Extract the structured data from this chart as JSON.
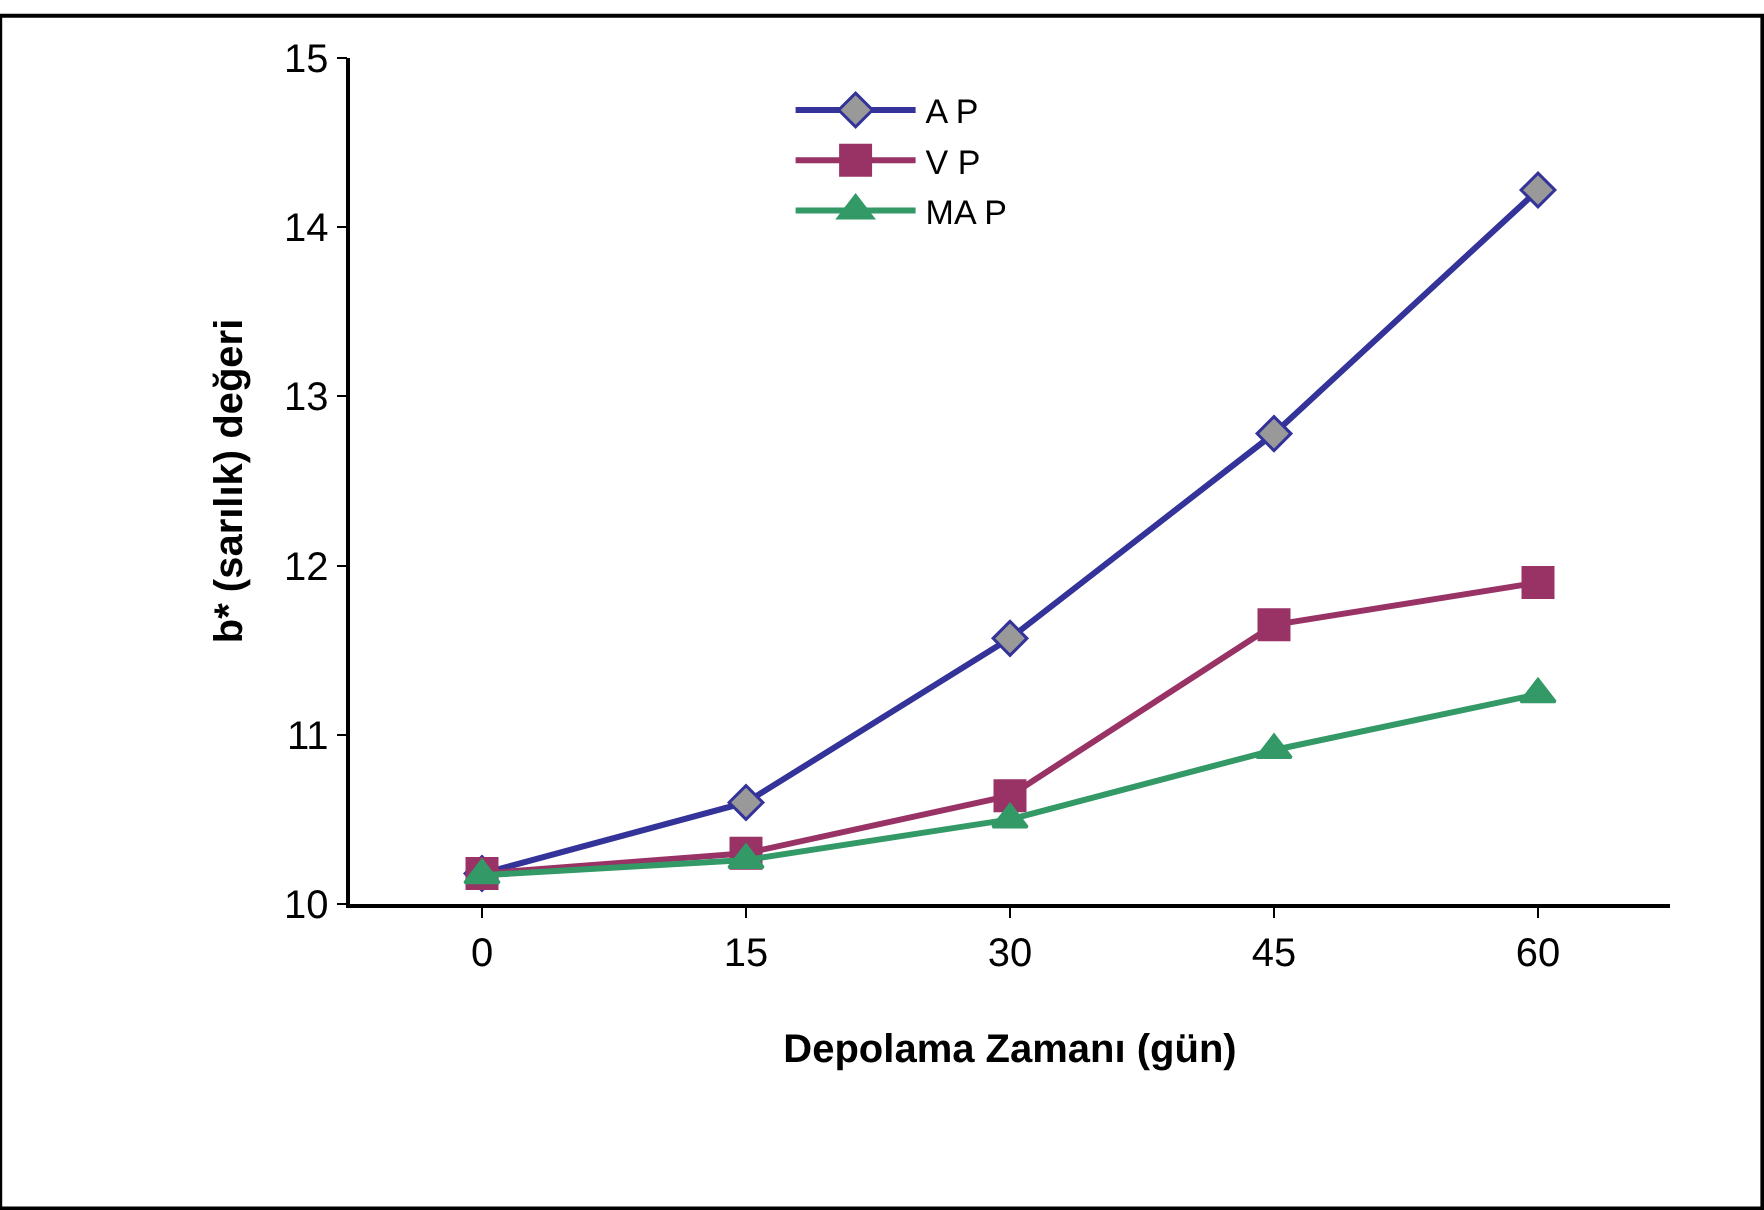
{
  "chart_data": {
    "type": "line",
    "xlabel": "Depolama Zamanı (gün)",
    "ylabel": "b* (sarılık) değeri",
    "categories": [
      "0",
      "15",
      "30",
      "45",
      "60"
    ],
    "series": [
      {
        "name": "A P",
        "color": "#333399",
        "marker": "diamond",
        "values": [
          10.18,
          10.6,
          11.57,
          12.78,
          14.22
        ]
      },
      {
        "name": "V P",
        "color": "#993366",
        "marker": "square",
        "values": [
          10.18,
          10.3,
          10.64,
          11.65,
          11.9
        ]
      },
      {
        "name": "MA P",
        "color": "#339966",
        "marker": "triangle",
        "values": [
          10.17,
          10.26,
          10.5,
          10.91,
          11.24
        ]
      }
    ],
    "ylim": [
      10,
      15
    ],
    "yticks": [
      10,
      11,
      12,
      13,
      14,
      15
    ],
    "legend": "top"
  }
}
